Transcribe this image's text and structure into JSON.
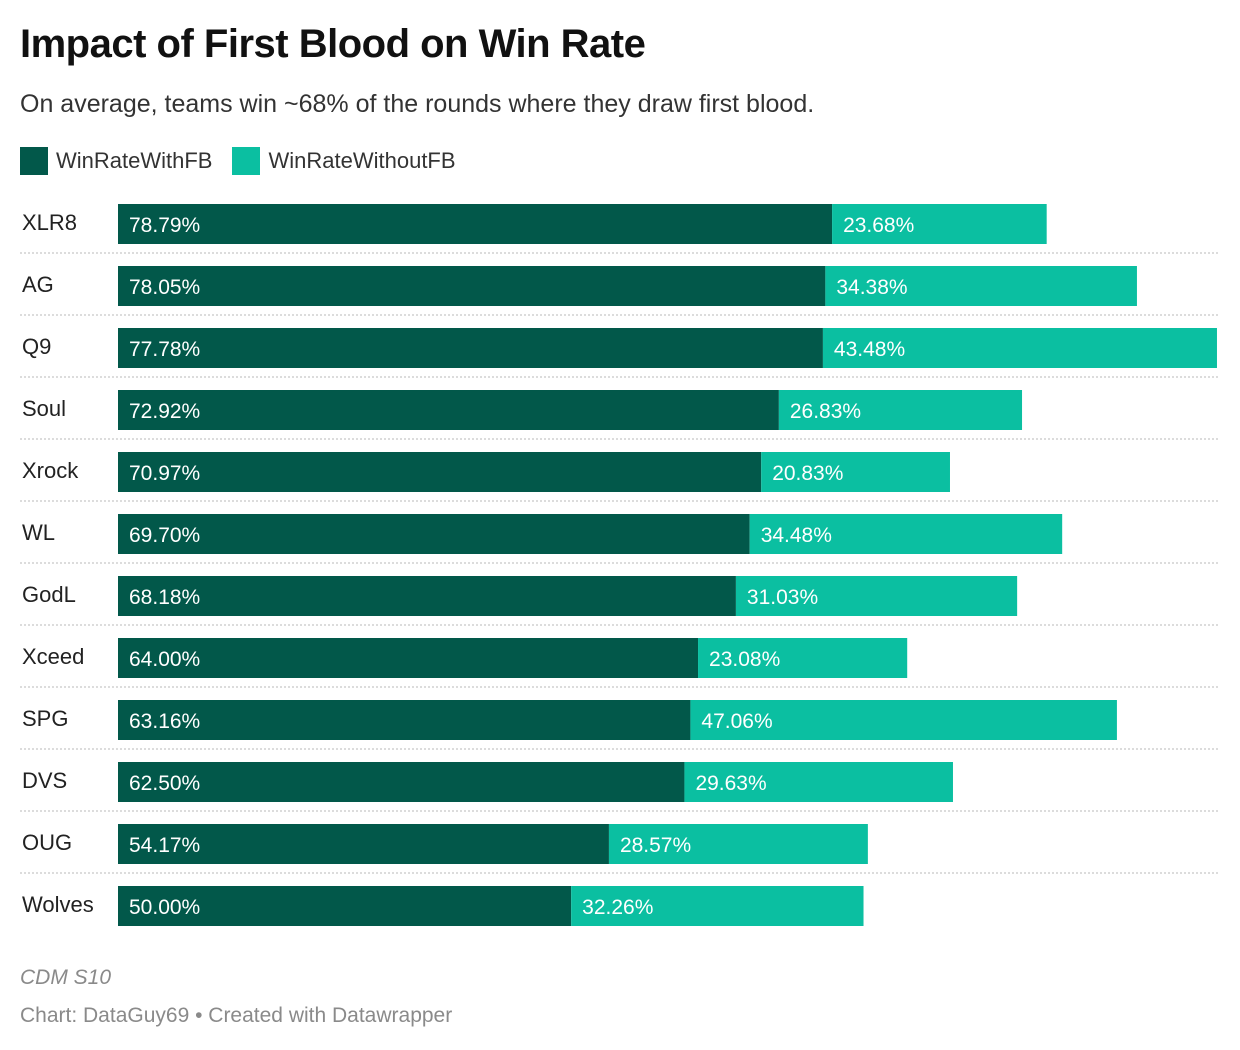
{
  "title": "Impact of First Blood on Win Rate",
  "subtitle": "On average, teams win ~68% of the rounds where they draw first blood.",
  "footer": {
    "note": "CDM S10",
    "credit": "Chart: DataGuy69 • Created with Datawrapper"
  },
  "colors": {
    "with_fb": "#02584a",
    "without_fb": "#0bbfa1",
    "row_divider": "#c8c8c8",
    "category_text": "#222222",
    "bar_text": "#ffffff"
  },
  "chart_data": {
    "type": "bar",
    "orientation": "horizontal",
    "stacked": true,
    "categories": [
      "XLR8",
      "AG",
      "Q9",
      "Soul",
      "Xrock",
      "WL",
      "GodL",
      "Xceed",
      "SPG",
      "DVS",
      "OUG",
      "Wolves"
    ],
    "series": [
      {
        "name": "WinRateWithFB",
        "values": [
          78.79,
          78.05,
          77.78,
          72.92,
          70.97,
          69.7,
          68.18,
          64.0,
          63.16,
          62.5,
          54.17,
          50.0
        ],
        "labels": [
          "78.79%",
          "78.05%",
          "77.78%",
          "72.92%",
          "70.97%",
          "69.70%",
          "68.18%",
          "64.00%",
          "63.16%",
          "62.50%",
          "54.17%",
          "50.00%"
        ]
      },
      {
        "name": "WinRateWithoutFB",
        "values": [
          23.68,
          34.38,
          43.48,
          26.83,
          20.83,
          34.48,
          31.03,
          23.08,
          47.06,
          29.63,
          28.57,
          32.26
        ],
        "labels": [
          "23.68%",
          "34.38%",
          "43.48%",
          "26.83%",
          "20.83%",
          "34.48%",
          "31.03%",
          "23.08%",
          "47.06%",
          "29.63%",
          "28.57%",
          "32.26%"
        ]
      }
    ],
    "legend_position": "top-left",
    "grid": false
  }
}
